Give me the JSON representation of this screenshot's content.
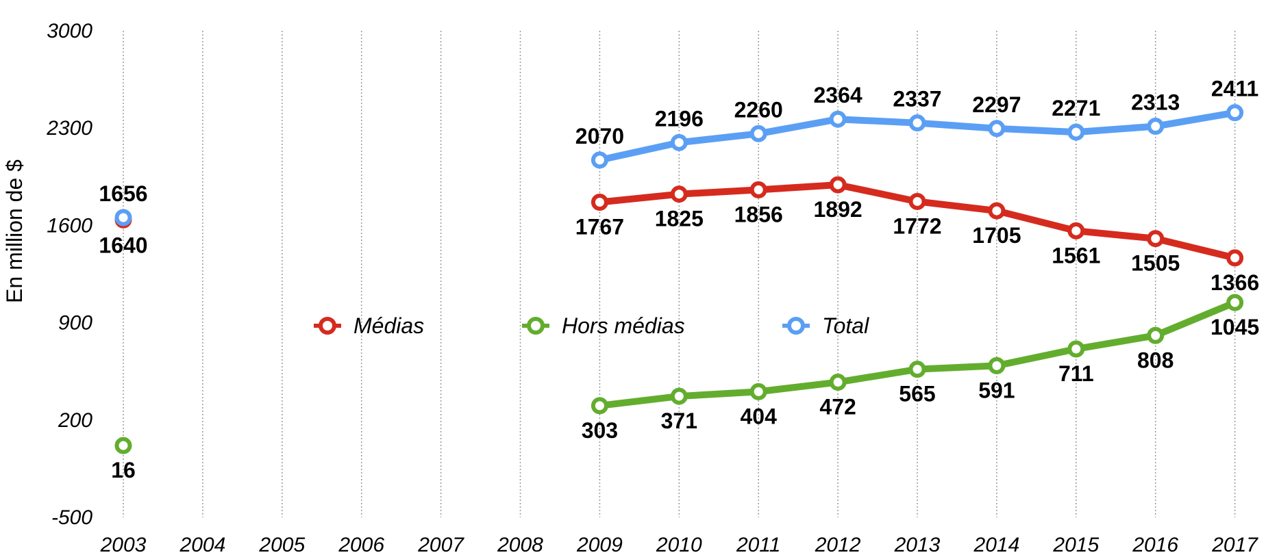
{
  "chart_data": {
    "type": "line",
    "ylabel": "En million de $",
    "ylim": [
      -500,
      3000
    ],
    "yticks": [
      -500,
      200,
      900,
      1600,
      2300,
      3000
    ],
    "categories": [
      "2003",
      "2004",
      "2005",
      "2006",
      "2007",
      "2008",
      "2009",
      "2010",
      "2011",
      "2012",
      "2013",
      "2014",
      "2015",
      "2016",
      "2017"
    ],
    "grid": "vertical dotted",
    "legend_position": "center",
    "series": [
      {
        "name": "Médias",
        "color": "#d52b1e",
        "values": [
          1640,
          null,
          null,
          null,
          null,
          null,
          1767,
          1825,
          1856,
          1892,
          1772,
          1705,
          1561,
          1505,
          1366
        ],
        "label_position": "below"
      },
      {
        "name": "Hors médias",
        "color": "#63ad2e",
        "values": [
          16,
          null,
          null,
          null,
          null,
          null,
          303,
          371,
          404,
          472,
          565,
          591,
          711,
          808,
          1045
        ],
        "label_position": "below"
      },
      {
        "name": "Total",
        "color": "#5b9ff4",
        "values": [
          1656,
          null,
          null,
          null,
          null,
          null,
          2070,
          2196,
          2260,
          2364,
          2337,
          2297,
          2271,
          2313,
          2411
        ],
        "label_position": "above"
      }
    ]
  }
}
